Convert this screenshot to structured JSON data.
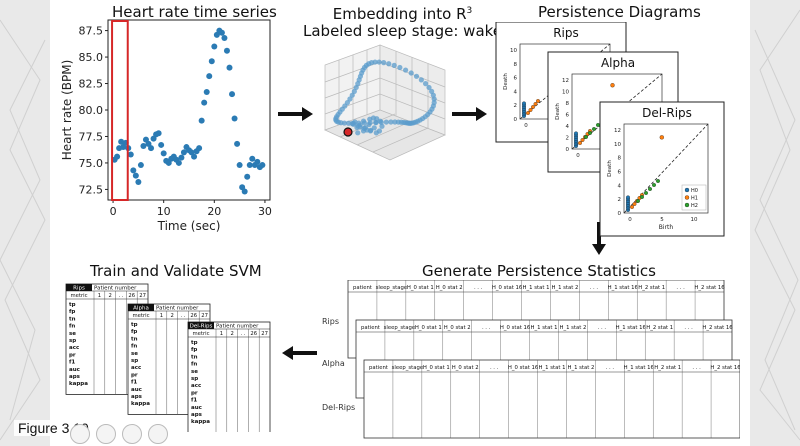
{
  "sections": {
    "ts_title": "Heart rate time series",
    "embed_title_1": "Embedding into R",
    "embed_title_sup": "3",
    "embed_title_2": "Labeled sleep stage: wake",
    "pd_title": "Persistence Diagrams",
    "stats_title": "Generate Persistence Statistics",
    "svm_title": "Train and Validate SVM"
  },
  "figure_caption": "Figure 3.10",
  "chart_data": {
    "type": "scatter",
    "title": "",
    "xlabel": "Time (sec)",
    "ylabel": "Heart rate (BPM)",
    "xlim": [
      -1,
      31
    ],
    "ylim": [
      71.5,
      88.5
    ],
    "xticks": [
      "0",
      "10",
      "20",
      "30"
    ],
    "yticks": [
      "72.5",
      "75.0",
      "77.5",
      "80.0",
      "82.5",
      "85.0",
      "87.5"
    ],
    "x": [
      0.3,
      0.8,
      1.2,
      1.6,
      2.0,
      2.5,
      3.0,
      3.5,
      4.0,
      4.5,
      5.0,
      5.5,
      6.0,
      6.5,
      7.0,
      7.5,
      8.0,
      8.5,
      9.0,
      9.5,
      10.0,
      10.5,
      11.0,
      11.5,
      12.0,
      12.5,
      13.0,
      13.5,
      14.0,
      14.5,
      15.0,
      15.5,
      16.0,
      16.5,
      17.0,
      17.5,
      18.0,
      18.5,
      19.0,
      19.5,
      20.0,
      20.5,
      21.0,
      21.5,
      22.0,
      22.5,
      23.0,
      23.5,
      24.0,
      24.5,
      25.0,
      25.5,
      26.0,
      26.5,
      27.0,
      27.5,
      28.0,
      28.5,
      29.0,
      29.5
    ],
    "y": [
      75.3,
      75.6,
      76.4,
      77.0,
      76.5,
      76.9,
      76.4,
      75.8,
      74.3,
      73.8,
      73.2,
      74.8,
      76.6,
      77.2,
      76.8,
      76.4,
      77.3,
      77.7,
      77.8,
      76.7,
      75.9,
      75.2,
      75.0,
      75.4,
      75.6,
      75.3,
      75.0,
      75.5,
      76.0,
      76.5,
      76.2,
      76.0,
      75.6,
      76.1,
      76.4,
      79.0,
      80.7,
      81.7,
      83.2,
      84.6,
      86.0,
      87.1,
      87.5,
      87.3,
      86.8,
      85.6,
      84.0,
      81.5,
      79.2,
      76.8,
      74.8,
      72.7,
      72.3,
      73.7,
      74.8,
      75.4,
      74.8,
      75.1,
      74.6,
      74.8
    ],
    "highlight_x_range": [
      0,
      2.9
    ],
    "point_color": "#2b7bb4",
    "highlight_color": "#d62728"
  },
  "diagrams": {
    "embedding_axes_color": "#888888",
    "pd_cards": [
      {
        "title": "Rips",
        "ylabel": "Death",
        "xlabel": "",
        "yticks": [
          "0",
          "2",
          "4",
          "6",
          "8",
          "10"
        ],
        "xticks": [
          "0"
        ]
      },
      {
        "title": "Alpha",
        "ylabel": "Death",
        "xlabel": "",
        "yticks": [
          "0",
          "2",
          "4",
          "6",
          "8",
          "10",
          "12"
        ],
        "xticks": [
          "0"
        ]
      },
      {
        "title": "Del-Rips",
        "ylabel": "Death",
        "xlabel": "Birth",
        "yticks": [
          "0",
          "2",
          "4",
          "6",
          "8",
          "10",
          "12"
        ],
        "xticks": [
          "0",
          "5",
          "10"
        ],
        "legend": [
          "H0",
          "H1",
          "H2"
        ]
      }
    ],
    "colors": {
      "h0": "#1f77b4",
      "h1": "#ff7f0e",
      "h2": "#2ca02c"
    }
  },
  "stats": {
    "row_labels": [
      "Rips",
      "Alpha",
      "Del-Rips"
    ],
    "headers": [
      "patient",
      "sleep_stage",
      "H_0 stat 1",
      "H_0 stat 2",
      ". . .",
      "H_0 stat 16",
      "H_1 stat 1",
      "H_1 stat 2",
      ". . .",
      "H_1 stat 16",
      "H_2 stat 1",
      ". . .",
      "H_2 stat 16"
    ]
  },
  "svm": {
    "tables": [
      {
        "title": "Rips"
      },
      {
        "title": "Alpha"
      },
      {
        "title": "Del-Rips"
      }
    ],
    "patient_number_label": "Patient number",
    "metric_label": "metric",
    "columns": [
      "1",
      "2",
      ". .",
      "26",
      "27"
    ],
    "metrics": [
      "tp",
      "fp",
      "tn",
      "fn",
      "se",
      "sp",
      "acc",
      "pr",
      "f1",
      "auc",
      "aps",
      "kappa"
    ]
  }
}
